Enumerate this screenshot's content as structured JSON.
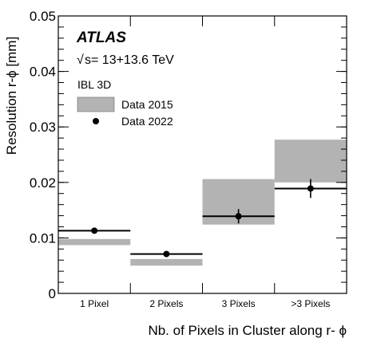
{
  "chart_data": {
    "type": "scatter",
    "categories": [
      "1 Pixel",
      "2 Pixels",
      "3 Pixels",
      ">3 Pixels"
    ],
    "xlabel": "Nb. of Pixels in Cluster along r- ϕ",
    "ylabel": "Resolution r-ϕ [mm]",
    "ylim": [
      0,
      0.05
    ],
    "yticks": [
      "0",
      "0.01",
      "0.02",
      "0.03",
      "0.04",
      "0.05"
    ],
    "yticks_values": [
      0,
      0.01,
      0.02,
      0.03,
      0.04,
      0.05
    ],
    "grid": false,
    "legend_position": "top-left",
    "experiment": "ATLAS",
    "energy_label": "s= 13+13.6 TeV",
    "sqrt_symbol": "√",
    "detector_label": "IBL 3D",
    "series": [
      {
        "name": "Data 2015",
        "style": "band",
        "color": "#b3b3b3",
        "bands": [
          {
            "category": "1 Pixel",
            "low": 0.0087,
            "high": 0.0098
          },
          {
            "category": "2 Pixels",
            "low": 0.005,
            "high": 0.0062
          },
          {
            "category": "3 Pixels",
            "low": 0.0124,
            "high": 0.0206
          },
          {
            "category": ">3 Pixels",
            "low": 0.02,
            "high": 0.0277
          }
        ]
      },
      {
        "name": "Data 2022",
        "style": "points",
        "color": "#000000",
        "values": [
          0.0113,
          0.0071,
          0.0139,
          0.0189
        ],
        "errors": [
          0.0004,
          0.0003,
          0.0013,
          0.0017
        ]
      }
    ]
  }
}
